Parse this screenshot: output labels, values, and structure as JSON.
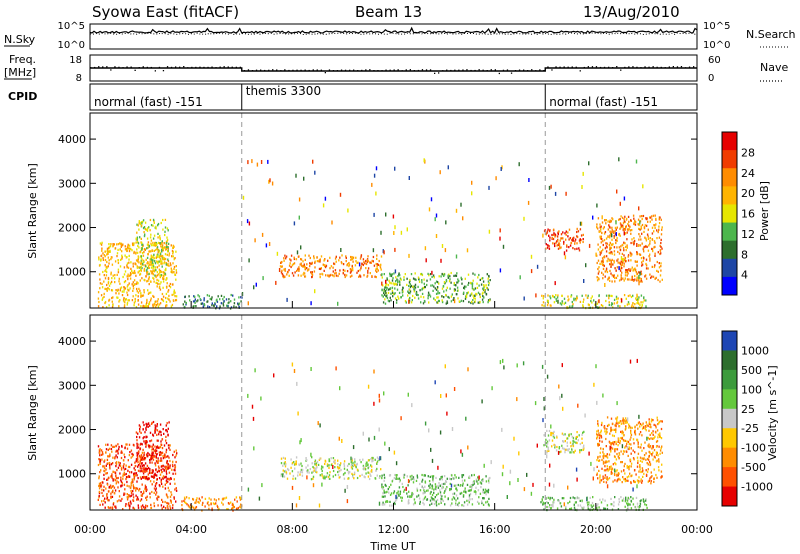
{
  "header": {
    "radar": "Syowa East (fitACF)",
    "beam": "Beam 13",
    "date": "13/Aug/2010"
  },
  "panels": {
    "nsky": {
      "left_label": "N.Sky",
      "right_label": "N.Search",
      "left_ticks": [
        "10^5",
        "10^0"
      ],
      "right_ticks": [
        "10^5",
        "10^0"
      ]
    },
    "freq": {
      "left_label_line1": "Freq.",
      "left_label_line2": "[MHz]",
      "right_label": "Nave",
      "left_ticks": [
        "18",
        "8"
      ],
      "right_ticks": [
        "60",
        "0"
      ]
    },
    "cpid": {
      "label": "CPID",
      "segments": [
        {
          "name": "normal (fast) -151",
          "start_hr": 0,
          "end_hr": 6
        },
        {
          "name": "themis 3300",
          "start_hr": 6,
          "end_hr": 18
        },
        {
          "name": "normal (fast) -151",
          "start_hr": 18,
          "end_hr": 24
        }
      ]
    }
  },
  "chart_data": [
    {
      "type": "heatmap",
      "title": "Power",
      "ylabel": "Slant Range [km]",
      "ylim": [
        180,
        4590
      ],
      "yticks": [
        "1000",
        "2000",
        "3000",
        "4000"
      ],
      "xlim": [
        0,
        24
      ],
      "colorbar_label": "Power [dB]",
      "colorbar_ticks": [
        "28",
        "24",
        "20",
        "16",
        "12",
        "8",
        "4"
      ],
      "colorbar_colors": [
        "#e60000",
        "#f03c00",
        "#ff8c00",
        "#ffb400",
        "#e6e600",
        "#4db64d",
        "#2d6e2d",
        "#1e46a5",
        "#0000ff"
      ],
      "features": [
        {
          "t0": 0.3,
          "t1": 3.4,
          "r0": 220,
          "r1": 1700,
          "level": 3
        },
        {
          "t0": 1.8,
          "t1": 3.1,
          "r0": 900,
          "r1": 2200,
          "level": 4
        },
        {
          "t0": 3.6,
          "t1": 6.0,
          "r0": 190,
          "r1": 500,
          "level": 6
        },
        {
          "t0": 7.5,
          "t1": 11.5,
          "r0": 900,
          "r1": 1400,
          "level": 2
        },
        {
          "t0": 11.5,
          "t1": 15.8,
          "r0": 300,
          "r1": 1000,
          "level": 5
        },
        {
          "t0": 17.8,
          "t1": 22.0,
          "r0": 200,
          "r1": 500,
          "level": 4
        },
        {
          "t0": 17.9,
          "t1": 19.5,
          "r0": 1500,
          "r1": 2000,
          "level": 1
        },
        {
          "t0": 20.0,
          "t1": 22.6,
          "r0": 800,
          "r1": 2300,
          "level": 2
        }
      ]
    },
    {
      "type": "heatmap",
      "title": "Velocity",
      "ylabel": "Slant Range [km]",
      "ylim": [
        180,
        4590
      ],
      "yticks": [
        "1000",
        "2000",
        "3000",
        "4000"
      ],
      "xlim": [
        0,
        24
      ],
      "colorbar_label": "Velocity [m s^-1]",
      "colorbar_ticks": [
        "1000",
        "500",
        "100",
        "25",
        "-25",
        "-100",
        "-500",
        "-1000"
      ],
      "colorbar_colors": [
        "#1e46b4",
        "#2d6e2d",
        "#3c9b3c",
        "#64c83c",
        "#c8c8c8",
        "#ffc800",
        "#ff8c00",
        "#ff5000",
        "#e60000"
      ],
      "features": [
        {
          "t0": 0.3,
          "t1": 3.4,
          "r0": 220,
          "r1": 1700,
          "level": 7
        },
        {
          "t0": 1.8,
          "t1": 3.1,
          "r0": 900,
          "r1": 2200,
          "level": 8
        },
        {
          "t0": 3.6,
          "t1": 6.0,
          "r0": 190,
          "r1": 500,
          "level": 6
        },
        {
          "t0": 7.5,
          "t1": 11.5,
          "r0": 900,
          "r1": 1400,
          "level": 4
        },
        {
          "t0": 11.5,
          "t1": 15.8,
          "r0": 300,
          "r1": 1000,
          "level": 3
        },
        {
          "t0": 17.8,
          "t1": 22.0,
          "r0": 200,
          "r1": 500,
          "level": 3
        },
        {
          "t0": 17.9,
          "t1": 19.5,
          "r0": 1500,
          "r1": 2000,
          "level": 4
        },
        {
          "t0": 20.0,
          "t1": 22.6,
          "r0": 800,
          "r1": 2300,
          "level": 6
        }
      ]
    }
  ],
  "time_axis": {
    "ticks": [
      "00:00",
      "04:00",
      "08:00",
      "12:00",
      "16:00",
      "20:00",
      "00:00"
    ],
    "xlabel": "Time UT"
  }
}
